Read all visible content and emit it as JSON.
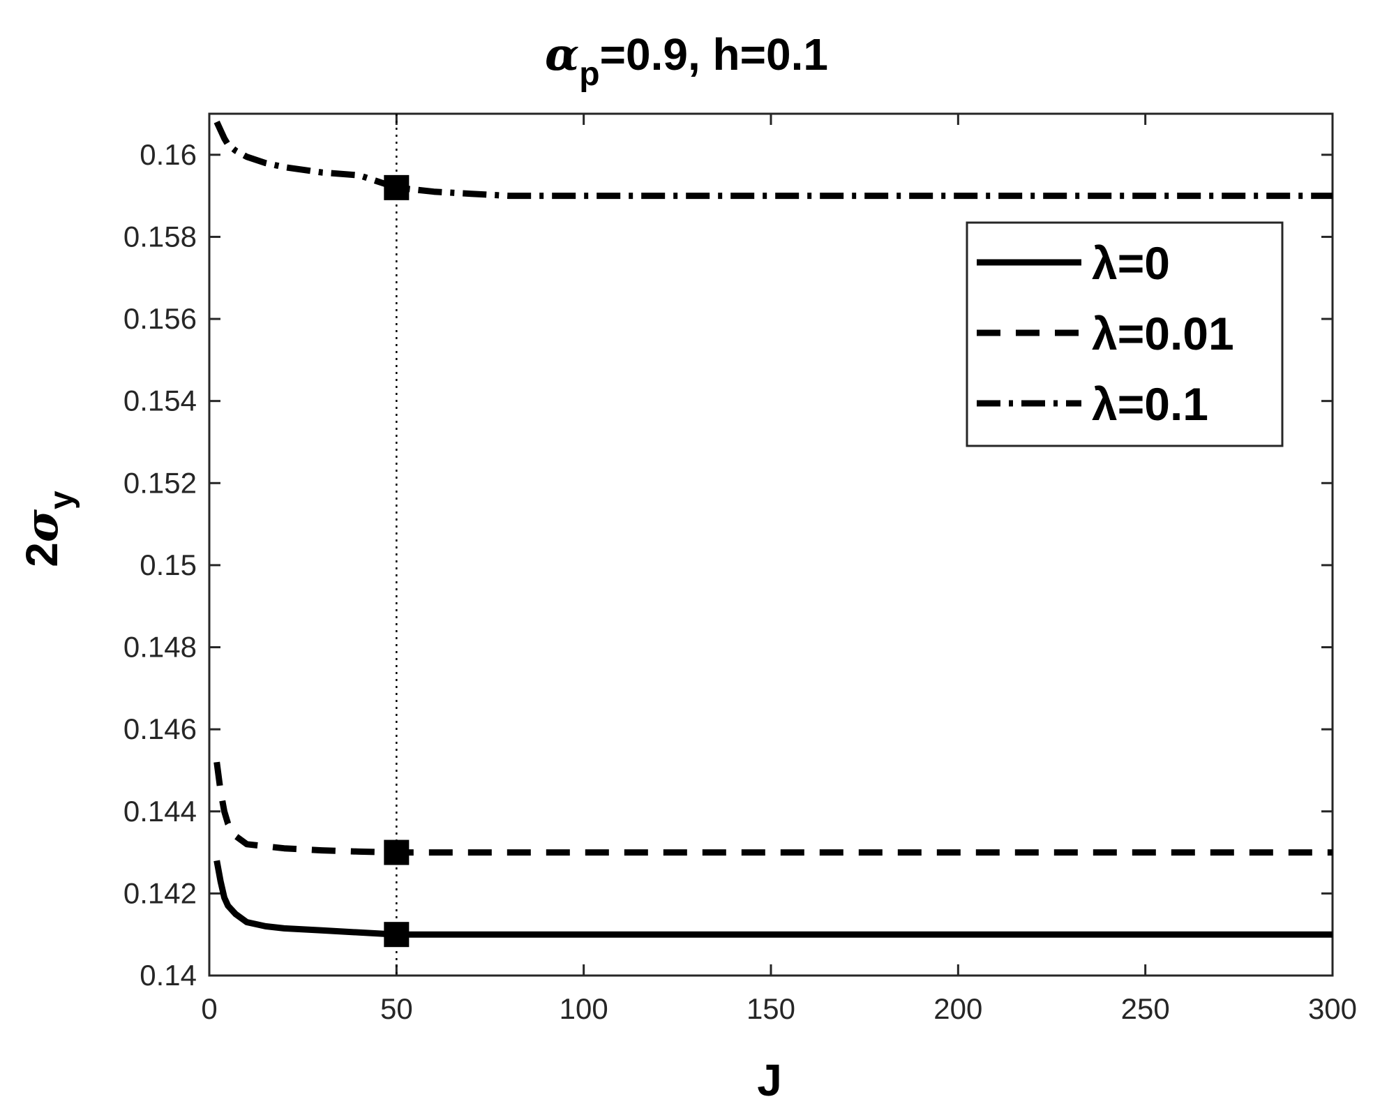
{
  "chart_data": {
    "type": "line",
    "title": {
      "symbol": "α",
      "subscript": "p",
      "rest": "=0.9, h=0.1"
    },
    "xlabel": "J",
    "ylabel": {
      "prefix": "2",
      "symbol": "σ",
      "subscript": "y"
    },
    "xlim": [
      0,
      300
    ],
    "ylim": [
      0.14,
      0.161
    ],
    "xticks": [
      0,
      50,
      100,
      150,
      200,
      250,
      300
    ],
    "xtick_labels": [
      "0",
      "50",
      "100",
      "150",
      "200",
      "250",
      "300"
    ],
    "yticks": [
      0.14,
      0.142,
      0.144,
      0.146,
      0.148,
      0.15,
      0.152,
      0.154,
      0.156,
      0.158,
      0.16
    ],
    "ytick_labels": [
      "0.14",
      "0.142",
      "0.144",
      "0.146",
      "0.148",
      "0.15",
      "0.152",
      "0.154",
      "0.156",
      "0.158",
      "0.16"
    ],
    "grid": false,
    "legend_position": "top-right",
    "reference_line": {
      "x": 50,
      "style": "dotted"
    },
    "series": [
      {
        "name": "λ=0",
        "line_style": "solid",
        "x": [
          2,
          3,
          4,
          5,
          7,
          10,
          15,
          20,
          30,
          40,
          50,
          70,
          100,
          150,
          200,
          250,
          300
        ],
        "y": [
          0.1428,
          0.1423,
          0.1419,
          0.1417,
          0.1415,
          0.1413,
          0.1412,
          0.14115,
          0.1411,
          0.14105,
          0.141,
          0.141,
          0.141,
          0.141,
          0.141,
          0.141,
          0.141
        ],
        "marker": {
          "x": 50,
          "y": 0.141,
          "shape": "square"
        }
      },
      {
        "name": "λ=0.01",
        "line_style": "dashed",
        "x": [
          2,
          3,
          4,
          5,
          7,
          10,
          15,
          20,
          30,
          40,
          50,
          70,
          100,
          150,
          200,
          250,
          300
        ],
        "y": [
          0.1452,
          0.1445,
          0.144,
          0.1437,
          0.1434,
          0.1432,
          0.14315,
          0.1431,
          0.14305,
          0.14302,
          0.143,
          0.143,
          0.143,
          0.143,
          0.143,
          0.143,
          0.143
        ],
        "marker": {
          "x": 50,
          "y": 0.143,
          "shape": "square"
        }
      },
      {
        "name": "λ=0.1",
        "line_style": "dashdot",
        "x": [
          2,
          4,
          5,
          7,
          10,
          15,
          20,
          30,
          40,
          50,
          60,
          70,
          80,
          100,
          150,
          200,
          250,
          300
        ],
        "y": [
          0.1608,
          0.1604,
          0.16025,
          0.1601,
          0.15995,
          0.1598,
          0.1597,
          0.15957,
          0.1595,
          0.1592,
          0.1591,
          0.15905,
          0.159,
          0.159,
          0.159,
          0.159,
          0.159,
          0.159
        ],
        "marker": {
          "x": 50,
          "y": 0.1592,
          "shape": "square"
        }
      }
    ]
  }
}
